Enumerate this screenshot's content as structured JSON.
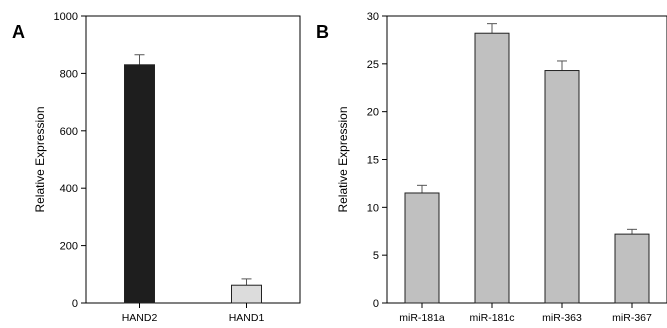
{
  "chart_data": [
    {
      "panel": "A",
      "type": "bar",
      "categories": [
        "HAND2",
        "HAND1"
      ],
      "values": [
        830,
        62
      ],
      "errors": [
        35,
        22
      ],
      "bar_colors": [
        "#1e1e1e",
        "#dcdcdc"
      ],
      "ylabel": "Relative Expression",
      "xlabel": "",
      "ylim": [
        0,
        1000
      ],
      "yticks": [
        0,
        200,
        400,
        600,
        800,
        1000
      ],
      "grid": false,
      "legend": "none"
    },
    {
      "panel": "B",
      "type": "bar",
      "categories": [
        "miR-181a",
        "miR-181c",
        "miR-363",
        "miR-367"
      ],
      "values": [
        11.5,
        28.2,
        24.3,
        7.2
      ],
      "errors": [
        0.8,
        1.0,
        1.0,
        0.5
      ],
      "bar_colors": [
        "#c0c0c0",
        "#c0c0c0",
        "#c0c0c0",
        "#c0c0c0"
      ],
      "ylabel": "Relative Expression",
      "xlabel": "",
      "ylim": [
        0,
        30
      ],
      "yticks": [
        0,
        5,
        10,
        15,
        20,
        25,
        30
      ],
      "grid": false,
      "legend": "none"
    }
  ]
}
